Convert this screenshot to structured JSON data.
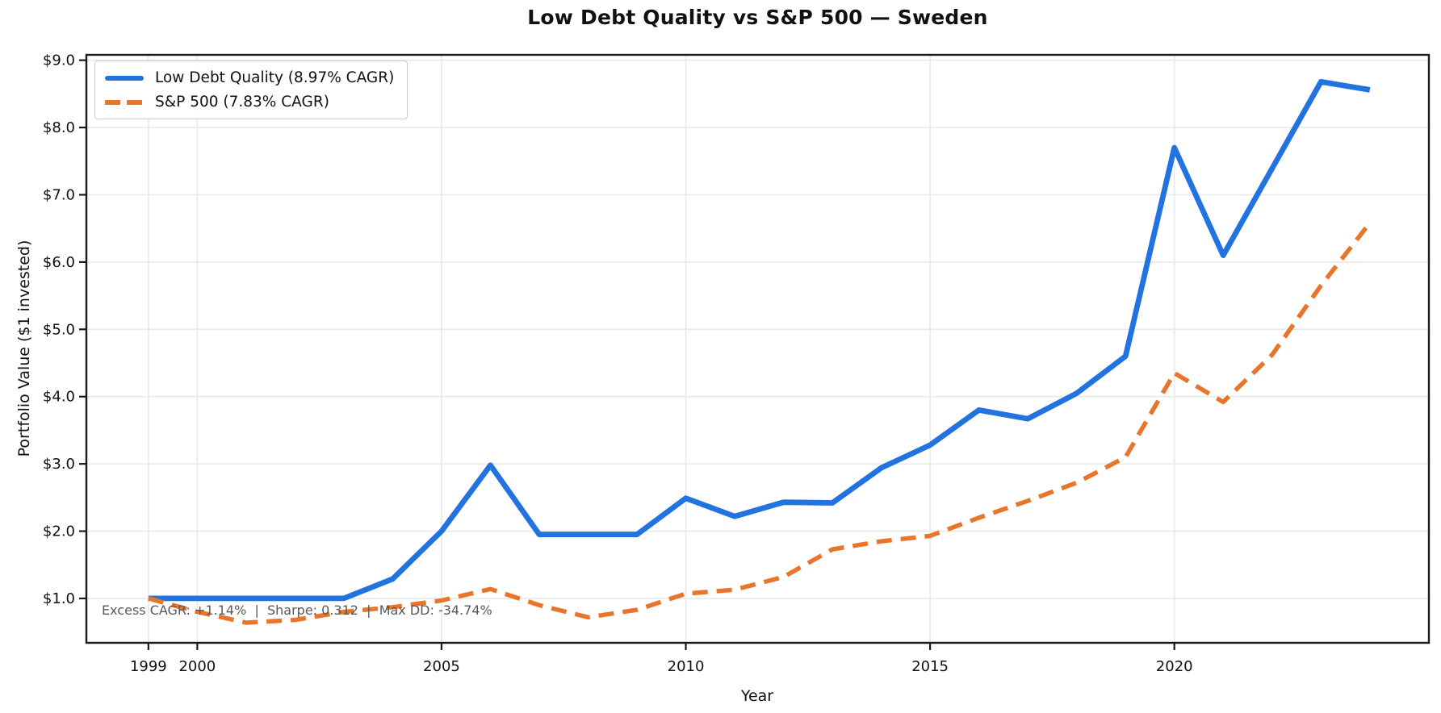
{
  "chart_data": {
    "type": "line",
    "title": "Low Debt Quality vs S&P 500 — Sweden",
    "xlabel": "Year",
    "ylabel": "Portfolio Value ($1 invested)",
    "annotation": "Excess CAGR: +1.14%  |  Sharpe: 0.312  |  Max DD: -34.74%",
    "grid": true,
    "legend_position": "upper-left",
    "x": [
      1999,
      2000,
      2001,
      2002,
      2003,
      2004,
      2005,
      2006,
      2007,
      2008,
      2009,
      2010,
      2011,
      2012,
      2013,
      2014,
      2015,
      2016,
      2017,
      2018,
      2019,
      2020,
      2021,
      2022,
      2023,
      2024
    ],
    "series": [
      {
        "name": "Low Debt Quality (8.97% CAGR)",
        "color": "#2273e0",
        "style": "solid",
        "values": [
          1.0,
          1.0,
          1.0,
          1.0,
          1.0,
          1.29,
          2.0,
          2.98,
          1.95,
          1.95,
          1.95,
          2.49,
          2.22,
          2.43,
          2.42,
          2.94,
          3.28,
          3.8,
          3.67,
          4.05,
          4.6,
          7.7,
          6.1,
          7.39,
          8.68,
          8.56
        ]
      },
      {
        "name": "S&P 500 (7.83% CAGR)",
        "color": "#e8752c",
        "style": "dashed",
        "values": [
          1.0,
          0.8,
          0.64,
          0.68,
          0.8,
          0.87,
          0.97,
          1.14,
          0.9,
          0.72,
          0.83,
          1.07,
          1.13,
          1.32,
          1.73,
          1.85,
          1.93,
          2.2,
          2.45,
          2.72,
          3.1,
          4.35,
          3.92,
          4.62,
          5.65,
          6.58
        ]
      }
    ],
    "xlim": [
      1997.73,
      2025.21
    ],
    "ylim": [
      0.34,
      9.08
    ],
    "xticks": {
      "values": [
        1999,
        2000,
        2005,
        2010,
        2015,
        2020
      ],
      "labels": [
        "1999",
        "2000",
        "2005",
        "2010",
        "2015",
        "2020"
      ]
    },
    "yticks": {
      "values": [
        1,
        2,
        3,
        4,
        5,
        6,
        7,
        8,
        9
      ],
      "labels": [
        "$1.0",
        "$2.0",
        "$3.0",
        "$4.0",
        "$5.0",
        "$6.0",
        "$7.0",
        "$8.0",
        "$9.0"
      ]
    },
    "colors": {
      "grid": "#e9e9e9",
      "frame": "#1a1a1a",
      "tick_label": "#111111",
      "annotation_text": "#595959"
    }
  }
}
